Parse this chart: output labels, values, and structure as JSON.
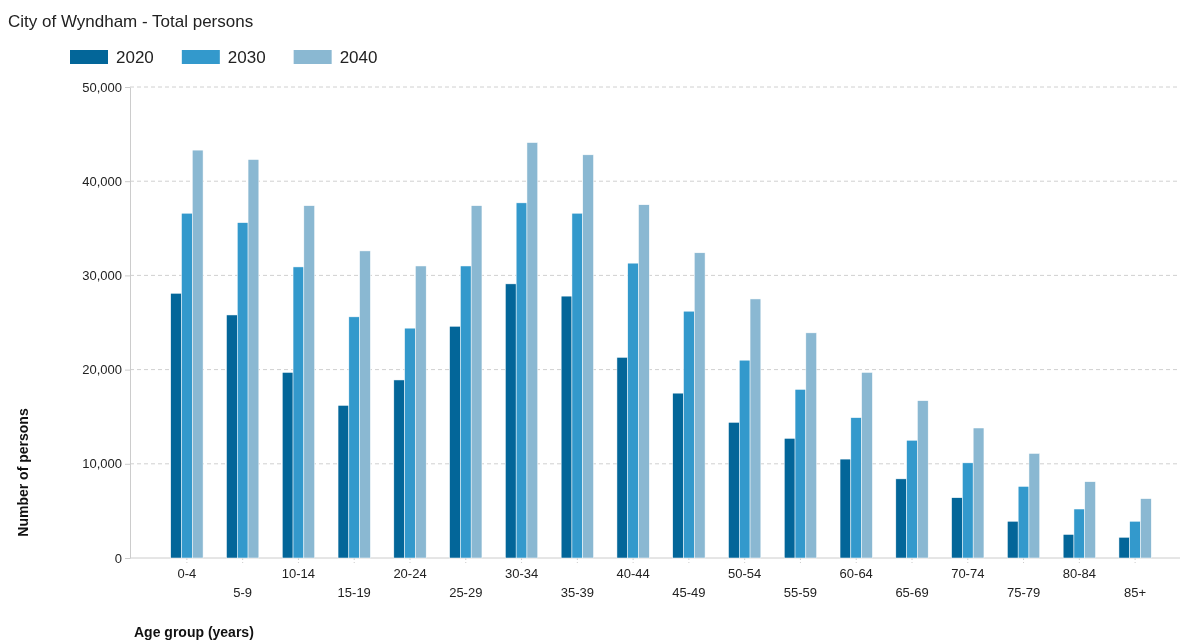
{
  "chart_data": {
    "type": "bar",
    "title": "City of Wyndham - Total persons",
    "xlabel": "Age group (years)",
    "ylabel": "Number of persons",
    "categories": [
      "0-4",
      "5-9",
      "10-14",
      "15-19",
      "20-24",
      "25-29",
      "30-34",
      "35-39",
      "40-44",
      "45-49",
      "50-54",
      "55-59",
      "60-64",
      "65-69",
      "70-74",
      "75-79",
      "80-84",
      "85+"
    ],
    "series": [
      {
        "name": "2020",
        "color": "#036699",
        "values": [
          28100,
          25800,
          19700,
          16200,
          18900,
          24600,
          29100,
          27800,
          21300,
          17500,
          14400,
          12700,
          10500,
          8400,
          6400,
          3900,
          2500,
          2200
        ]
      },
      {
        "name": "2030",
        "color": "#3399cc",
        "values": [
          36600,
          35600,
          30900,
          25600,
          24400,
          31000,
          37700,
          36600,
          31300,
          26200,
          21000,
          17900,
          14900,
          12500,
          10100,
          7600,
          5200,
          3900
        ]
      },
      {
        "name": "2040",
        "color": "#8ab8d2",
        "values": [
          43300,
          42300,
          37400,
          32600,
          31000,
          37400,
          44100,
          42800,
          37500,
          32400,
          27500,
          23900,
          19700,
          16700,
          13800,
          11100,
          8100,
          6300
        ]
      }
    ],
    "ylim": [
      0,
      50000
    ],
    "yticks": [
      {
        "value": 0,
        "label": "0"
      },
      {
        "value": 10000,
        "label": "10,000"
      },
      {
        "value": 20000,
        "label": "20,000"
      },
      {
        "value": 30000,
        "label": "30,000"
      },
      {
        "value": 40000,
        "label": "40,000"
      },
      {
        "value": 50000,
        "label": "50,000"
      }
    ],
    "grid": "y",
    "legend": "top left"
  }
}
